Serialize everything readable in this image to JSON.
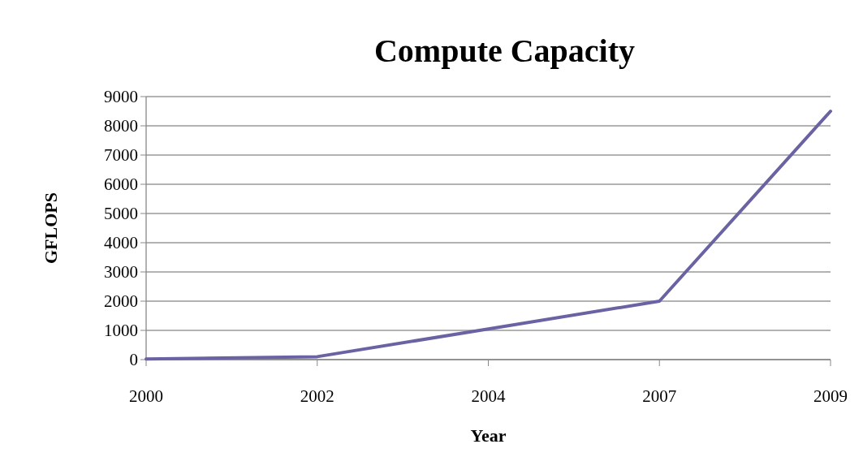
{
  "chart_data": {
    "type": "line",
    "title": "Compute Capacity",
    "xlabel": "Year",
    "ylabel": "GFLOPS",
    "categories": [
      "2000",
      "2002",
      "2004",
      "2007",
      "2009"
    ],
    "series": [
      {
        "color": "#6a63a3",
        "values": [
          20,
          100,
          1050,
          2000,
          8500
        ]
      }
    ],
    "ylim": [
      0,
      9000
    ],
    "yticks": [
      0,
      1000,
      2000,
      3000,
      4000,
      5000,
      6000,
      7000,
      8000,
      9000
    ],
    "grid": "y",
    "marker": "none",
    "line_style": "solid"
  }
}
